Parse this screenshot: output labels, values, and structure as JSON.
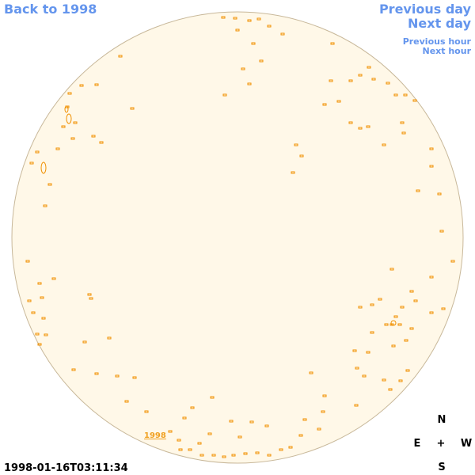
{
  "navigation": {
    "back": "Back to 1998",
    "previous_day": "Previous day",
    "next_day": "Next day",
    "previous_hour": "Previous hour",
    "next_hour": "Next hour"
  },
  "year_link": "1998",
  "timestamp": "1998-01-16T03:11:34",
  "compass": {
    "north": "N",
    "east": "E",
    "center": "+",
    "west": "W",
    "south": "S"
  }
}
